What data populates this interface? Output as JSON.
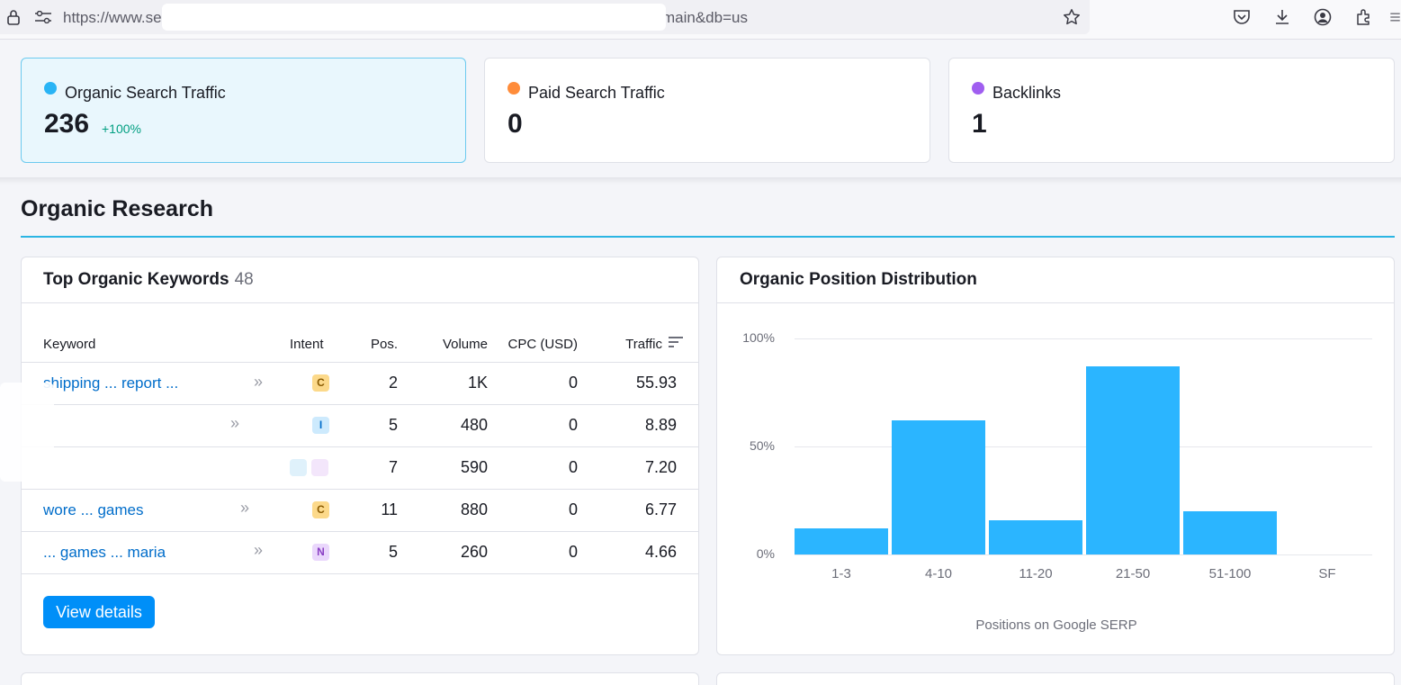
{
  "browser": {
    "url_start": "https://www.se",
    "url_end": "main&db=us"
  },
  "summary": [
    {
      "label": "Organic Search Traffic",
      "value": "236",
      "delta": "+100%",
      "color": "#29b4f5"
    },
    {
      "label": "Paid Search Traffic",
      "value": "0",
      "color": "#ff8c3a"
    },
    {
      "label": "Backlinks",
      "value": "1",
      "color": "#a05ef0"
    }
  ],
  "section": {
    "title": "Organic Research"
  },
  "keywords_panel": {
    "title": "Top Organic Keywords",
    "count": "48",
    "columns": {
      "keyword": "Keyword",
      "intent": "Intent",
      "pos": "Pos.",
      "volume": "Volume",
      "cpc": "CPC (USD)",
      "traffic": "Traffic"
    },
    "rows": [
      {
        "keyword": "shipping ... report ...",
        "intent": "C",
        "pos": "2",
        "volume": "1K",
        "cpc": "0",
        "traffic": "55.93"
      },
      {
        "keyword": "",
        "intent": "I",
        "pos": "5",
        "volume": "480",
        "cpc": "0",
        "traffic": "8.89"
      },
      {
        "keyword": "",
        "intent": "",
        "pos": "7",
        "volume": "590",
        "cpc": "0",
        "traffic": "7.20"
      },
      {
        "keyword": "wore ... games",
        "intent": "C",
        "pos": "11",
        "volume": "880",
        "cpc": "0",
        "traffic": "6.77"
      },
      {
        "keyword": "... games ... maria",
        "intent": "N",
        "pos": "5",
        "volume": "260",
        "cpc": "0",
        "traffic": "4.66"
      }
    ],
    "view_details": "View details"
  },
  "distribution_panel": {
    "title": "Organic Position Distribution"
  },
  "chart_data": {
    "type": "bar",
    "categories": [
      "1-3",
      "4-10",
      "11-20",
      "21-50",
      "51-100",
      "SF"
    ],
    "values": [
      12,
      62,
      16,
      87,
      20,
      0
    ],
    "ylim": [
      0,
      100
    ],
    "yticks": [
      "100%",
      "50%",
      "0%"
    ],
    "xlabel": "Positions on Google SERP",
    "grid": true,
    "color": "#2bb5ff"
  }
}
